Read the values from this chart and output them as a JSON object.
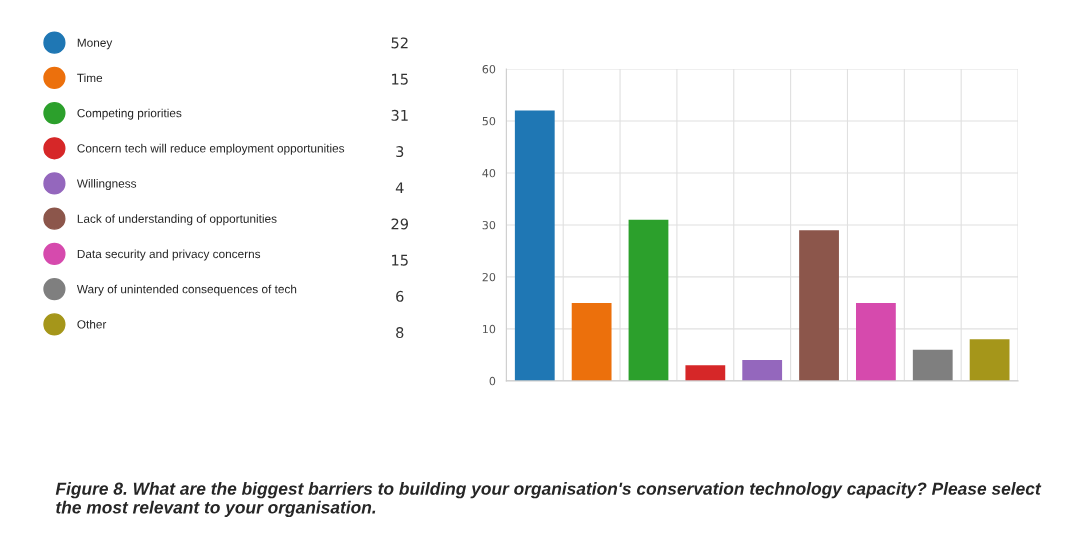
{
  "chart_data": {
    "type": "bar",
    "title": "Figure 8. What are the biggest barriers to building your organisation's conservation technology capacity? Please select the most relevant to your organisation.",
    "categories": [
      null,
      null,
      null,
      null,
      null,
      null,
      null,
      null,
      null
    ],
    "series": [
      {
        "name": "Money",
        "color": "#1f77b4",
        "values": [
          52,
          null,
          null,
          null,
          null,
          null,
          null,
          null,
          null
        ]
      },
      {
        "name": "Time",
        "color": "#ec700c",
        "values": [
          null,
          15,
          null,
          null,
          null,
          null,
          null,
          null,
          null
        ]
      },
      {
        "name": "Competing priorities",
        "color": "#2ca02c",
        "values": [
          null,
          null,
          31,
          null,
          null,
          null,
          null,
          null,
          null
        ]
      },
      {
        "name": "Concern tech will reduce employment opportunities",
        "color": "#d62728",
        "values": [
          null,
          null,
          null,
          3,
          null,
          null,
          null,
          null,
          null
        ]
      },
      {
        "name": "Willingness",
        "color": "#9467bd",
        "values": [
          null,
          null,
          null,
          null,
          4,
          null,
          null,
          null,
          null
        ]
      },
      {
        "name": "Lack of understanding of opportunities",
        "color": "#8c564b",
        "values": [
          null,
          null,
          null,
          null,
          null,
          29,
          null,
          null,
          null
        ]
      },
      {
        "name": "Data security and privacy concerns",
        "color": "#d64aad",
        "values": [
          null,
          null,
          null,
          null,
          null,
          null,
          15,
          null,
          null
        ]
      },
      {
        "name": "Wary of unintended consequences of tech",
        "color": "#7f7f7f",
        "values": [
          null,
          null,
          null,
          null,
          null,
          null,
          null,
          6,
          null
        ]
      },
      {
        "name": "Other",
        "color": "#a5961a",
        "values": [
          null,
          null,
          null,
          null,
          null,
          null,
          null,
          null,
          8
        ]
      }
    ],
    "ylim": [
      0,
      60
    ],
    "yticks": [
      0,
      10,
      20,
      30,
      40,
      50,
      60
    ],
    "annotations": [
      "52",
      "15",
      "31",
      "3",
      "4",
      "29",
      "15",
      "6",
      "8"
    ],
    "grid": true,
    "legend": "left",
    "tick_labels": "y"
  }
}
